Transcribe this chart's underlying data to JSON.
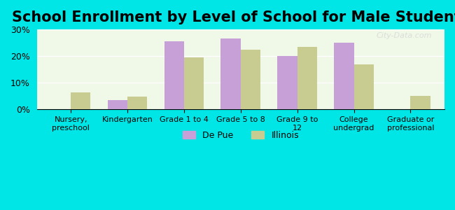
{
  "title": "School Enrollment by Level of School for Male Students",
  "categories": [
    "Nursery,\npreschool",
    "Kindergarten",
    "Grade 1 to 4",
    "Grade 5 to 8",
    "Grade 9 to\n12",
    "College\nundergrad",
    "Graduate or\nprofessional"
  ],
  "depue_values": [
    0,
    3.5,
    25.5,
    26.5,
    20.0,
    25.0,
    0
  ],
  "illinois_values": [
    6.5,
    4.8,
    19.5,
    22.5,
    23.5,
    17.0,
    5.0
  ],
  "depue_color": "#c8a0d8",
  "illinois_color": "#c8cc90",
  "background_color": "#00e5e5",
  "plot_bg": "#f0f8e8",
  "ylim": [
    0,
    30
  ],
  "yticks": [
    0,
    10,
    20,
    30
  ],
  "ytick_labels": [
    "0%",
    "10%",
    "20%",
    "30%"
  ],
  "legend_depue": "De Pue",
  "legend_illinois": "Illinois",
  "title_fontsize": 15,
  "bar_width": 0.35
}
